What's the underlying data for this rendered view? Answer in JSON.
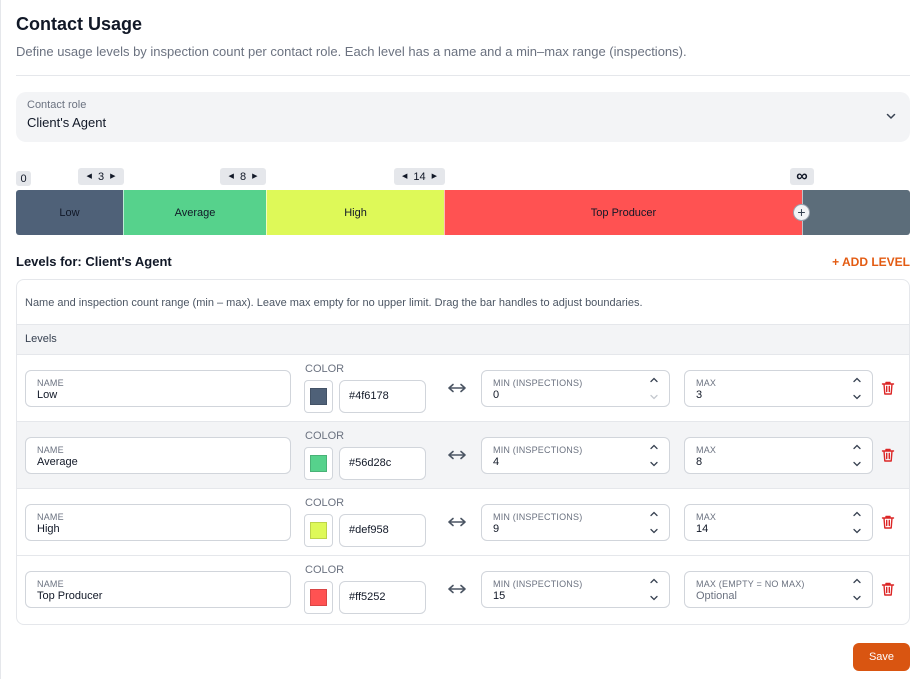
{
  "header": {
    "title": "Contact Usage",
    "description": "Define usage levels by inspection count per contact role. Each level has a name and a min–max range (inspections)."
  },
  "role_select": {
    "label": "Contact role",
    "value": "Client's Agent"
  },
  "bar": {
    "zero_label": "0",
    "infinity_label": "∞",
    "boundaries": [
      "3",
      "8",
      "14"
    ],
    "segments": [
      {
        "label": "Low",
        "color": "#4f6178",
        "min": 0,
        "max": 3
      },
      {
        "label": "Average",
        "color": "#56d28c",
        "min": 4,
        "max": 8
      },
      {
        "label": "High",
        "color": "#def958",
        "min": 9,
        "max": 14
      },
      {
        "label": "Top Producer",
        "color": "#ff5252",
        "min": 15,
        "max": null
      }
    ],
    "remainder_color": "#5c6d7a"
  },
  "levels_section": {
    "title": "Levels for: Client's Agent",
    "add_label": "+ ADD LEVEL",
    "help_text": "Name and inspection count range (min – max). Leave max empty for no upper limit. Drag the bar handles to adjust boundaries.",
    "table_header": "Levels"
  },
  "levels": [
    {
      "name_label": "NAME",
      "name": "Low",
      "color_label": "COLOR",
      "color": "#4f6178",
      "min_label": "MIN (INSPECTIONS)",
      "min": "0",
      "max_label": "MAX",
      "max": "3",
      "max_placeholder": ""
    },
    {
      "name_label": "NAME",
      "name": "Average",
      "color_label": "COLOR",
      "color": "#56d28c",
      "min_label": "MIN (INSPECTIONS)",
      "min": "4",
      "max_label": "MAX",
      "max": "8",
      "max_placeholder": ""
    },
    {
      "name_label": "NAME",
      "name": "High",
      "color_label": "COLOR",
      "color": "#def958",
      "min_label": "MIN (INSPECTIONS)",
      "min": "9",
      "max_label": "MAX",
      "max": "14",
      "max_placeholder": ""
    },
    {
      "name_label": "NAME",
      "name": "Top Producer",
      "color_label": "COLOR",
      "color": "#ff5252",
      "min_label": "MIN (INSPECTIONS)",
      "min": "15",
      "max_label": "MAX (EMPTY = NO MAX)",
      "max": "",
      "max_placeholder": "Optional"
    }
  ],
  "footer": {
    "save_label": "Save"
  },
  "colors": {
    "accent": "#d95511",
    "danger": "#dc2626"
  }
}
